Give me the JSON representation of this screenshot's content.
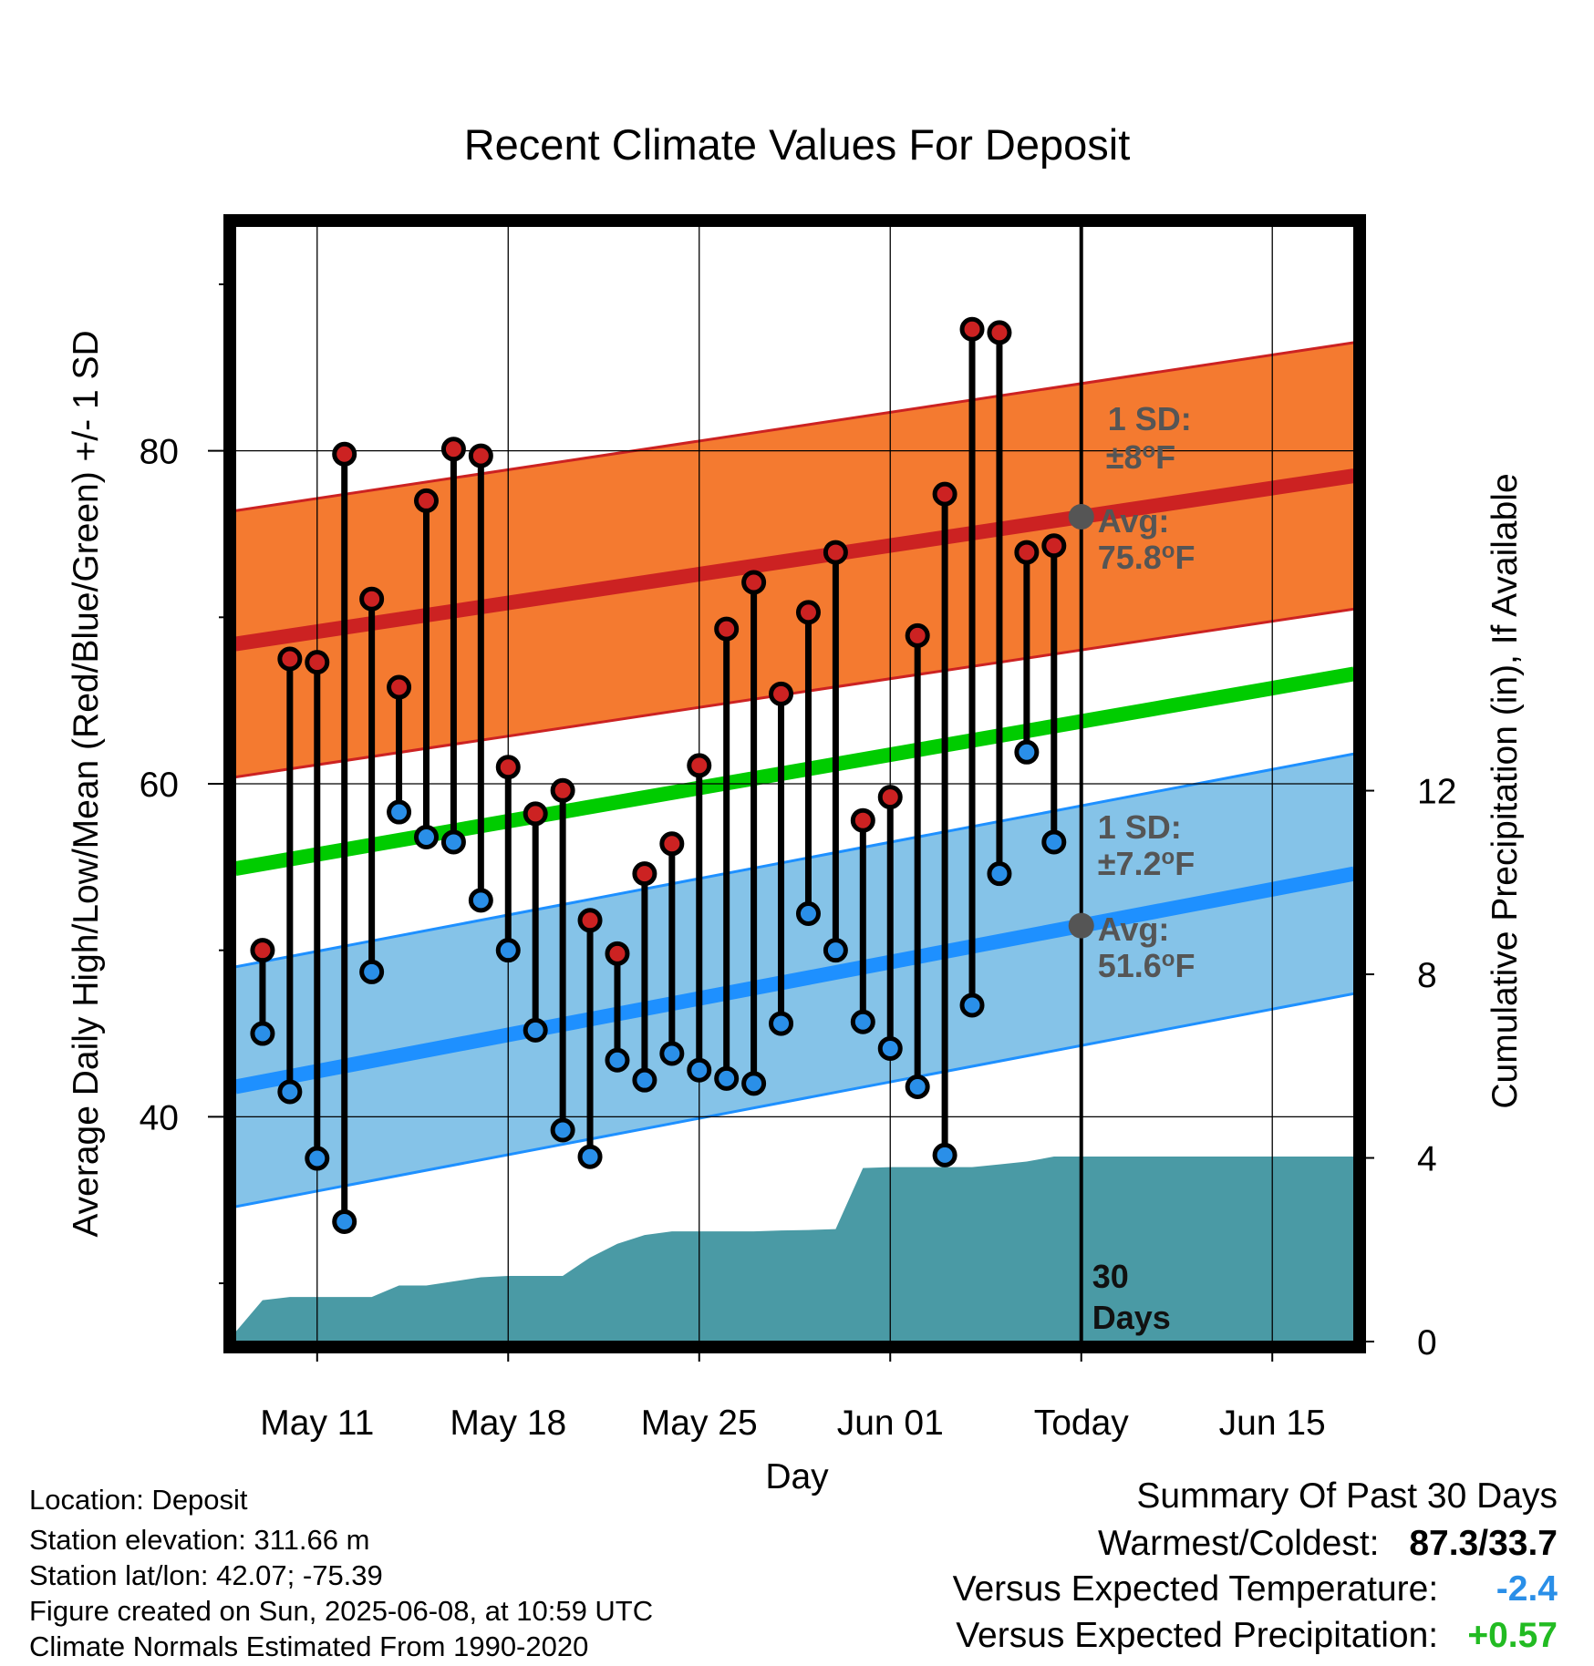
{
  "chart_data": {
    "type": "line",
    "title": "Recent Climate Values For Deposit",
    "xlabel": "Day",
    "ylabel": "Average Daily High/Low/Mean (Red/Blue/Green) +/- 1 SD",
    "y2label": "Cumulative Precipitation (in), If Available",
    "x_ticks": [
      "May 11",
      "May 18",
      "May 25",
      "Jun 01",
      "Today",
      "Jun 15"
    ],
    "y_ticks": [
      "40",
      "60",
      "80"
    ],
    "y2_ticks": [
      "0",
      "4",
      "8",
      "12"
    ],
    "x_range": [
      "2025-05-08",
      "2025-06-18"
    ],
    "ylim": [
      26.5,
      93.5
    ],
    "y2lim": [
      0,
      24.3
    ],
    "today": "2025-06-08",
    "series": [
      {
        "name": "High",
        "color": "#cc2222",
        "dates": [
          "2025-05-09",
          "2025-05-10",
          "2025-05-11",
          "2025-05-12",
          "2025-05-13",
          "2025-05-14",
          "2025-05-15",
          "2025-05-16",
          "2025-05-17",
          "2025-05-18",
          "2025-05-19",
          "2025-05-20",
          "2025-05-21",
          "2025-05-22",
          "2025-05-23",
          "2025-05-24",
          "2025-05-25",
          "2025-05-26",
          "2025-05-27",
          "2025-05-28",
          "2025-05-29",
          "2025-05-30",
          "2025-05-31",
          "2025-06-01",
          "2025-06-02",
          "2025-06-03",
          "2025-06-04",
          "2025-06-05",
          "2025-06-06",
          "2025-06-07"
        ],
        "values": [
          50.0,
          67.5,
          67.3,
          79.8,
          71.1,
          65.8,
          77.0,
          80.1,
          79.7,
          61.0,
          58.2,
          59.6,
          51.8,
          49.8,
          54.6,
          56.4,
          61.1,
          69.3,
          72.1,
          65.4,
          70.3,
          73.9,
          57.8,
          59.2,
          68.9,
          77.4,
          87.3,
          87.1,
          73.9,
          74.3
        ]
      },
      {
        "name": "Low",
        "color": "#2a8fe8",
        "dates": [
          "2025-05-09",
          "2025-05-10",
          "2025-05-11",
          "2025-05-12",
          "2025-05-13",
          "2025-05-14",
          "2025-05-15",
          "2025-05-16",
          "2025-05-17",
          "2025-05-18",
          "2025-05-19",
          "2025-05-20",
          "2025-05-21",
          "2025-05-22",
          "2025-05-23",
          "2025-05-24",
          "2025-05-25",
          "2025-05-26",
          "2025-05-27",
          "2025-05-28",
          "2025-05-29",
          "2025-05-30",
          "2025-05-31",
          "2025-06-01",
          "2025-06-02",
          "2025-06-03",
          "2025-06-04",
          "2025-06-05",
          "2025-06-06",
          "2025-06-07"
        ],
        "values": [
          45.0,
          41.5,
          37.5,
          33.7,
          48.7,
          58.3,
          56.8,
          56.5,
          53.0,
          50.0,
          45.2,
          39.2,
          37.6,
          43.4,
          42.2,
          43.8,
          42.8,
          42.3,
          42.0,
          45.6,
          52.2,
          50.0,
          45.7,
          44.1,
          41.8,
          37.7,
          46.7,
          54.6,
          61.9,
          56.5
        ]
      },
      {
        "name": "Mean",
        "color": "#00cc00",
        "dates": [
          "2025-05-08",
          "2025-06-18"
        ],
        "values": [
          54.9,
          66.6
        ]
      },
      {
        "name": "Avg High",
        "color": "#cc2222",
        "dates": [
          "2025-05-08",
          "2025-06-18"
        ],
        "values": [
          68.4,
          78.5
        ],
        "sd_band": [
          8,
          8
        ]
      },
      {
        "name": "Avg Low",
        "color": "#1e90ff",
        "dates": [
          "2025-05-08",
          "2025-06-18"
        ],
        "values": [
          41.8,
          54.6
        ],
        "sd_band": [
          7.2,
          7.2
        ]
      },
      {
        "name": "Cumulative Precipitation",
        "color": "#4a9aa5",
        "axis": "y2",
        "dates": [
          "2025-05-08",
          "2025-05-09",
          "2025-05-10",
          "2025-05-11",
          "2025-05-12",
          "2025-05-13",
          "2025-05-14",
          "2025-05-15",
          "2025-05-16",
          "2025-05-17",
          "2025-05-18",
          "2025-05-19",
          "2025-05-20",
          "2025-05-21",
          "2025-05-22",
          "2025-05-23",
          "2025-05-24",
          "2025-05-25",
          "2025-05-26",
          "2025-05-27",
          "2025-05-28",
          "2025-05-29",
          "2025-05-30",
          "2025-05-31",
          "2025-06-01",
          "2025-06-02",
          "2025-06-03",
          "2025-06-04",
          "2025-06-05",
          "2025-06-06",
          "2025-06-07",
          "2025-06-08",
          "2025-06-18"
        ],
        "values": [
          0.2,
          0.9,
          0.97,
          0.97,
          0.97,
          0.97,
          1.22,
          1.22,
          1.31,
          1.4,
          1.43,
          1.43,
          1.43,
          1.83,
          2.13,
          2.32,
          2.4,
          2.4,
          2.4,
          2.4,
          2.42,
          2.43,
          2.45,
          3.78,
          3.8,
          3.8,
          3.8,
          3.8,
          3.86,
          3.92,
          4.03,
          4.03,
          4.03
        ]
      }
    ],
    "annotations": {
      "high_sd_label": "1 SD:",
      "high_sd_value": "±8",
      "high_sd_unit": "F",
      "high_avg_label": "Avg:",
      "high_avg_value": "75.8",
      "high_avg_unit": "F",
      "low_sd_label": "1 SD:",
      "low_sd_value": "±7.2",
      "low_sd_unit": "F",
      "low_avg_label": "Avg:",
      "low_avg_value": "51.6",
      "low_avg_unit": "F",
      "degree": "o",
      "days_line1": "30",
      "days_line2": "Days"
    },
    "colors": {
      "high_band": "#f47a30",
      "low_band": "#85c3e8",
      "precip": "#4a9aa5",
      "high_line": "#cc2222",
      "low_line": "#1e90ff",
      "mean_line": "#00cc00",
      "marker_gray": "#555555"
    }
  },
  "info": {
    "location": "Location: Deposit",
    "elevation": "Station elevation: 311.66 m",
    "latlon": "Station lat/lon: 42.07; -75.39",
    "created": "Figure created on Sun, 2025-06-08, at 10:59 UTC",
    "normals": "Climate Normals Estimated From 1990-2020"
  },
  "summary": {
    "title": "Summary Of Past 30 Days",
    "warm_cold_label": "Warmest/Coldest:",
    "warm_cold_value": "87.3/33.7",
    "temp_label": "Versus Expected Temperature:",
    "temp_value": "-2.4",
    "temp_color": "#2a8fe8",
    "precip_label": "Versus Expected Precipitation:",
    "precip_value": "+0.57",
    "precip_color": "#22bb22"
  }
}
